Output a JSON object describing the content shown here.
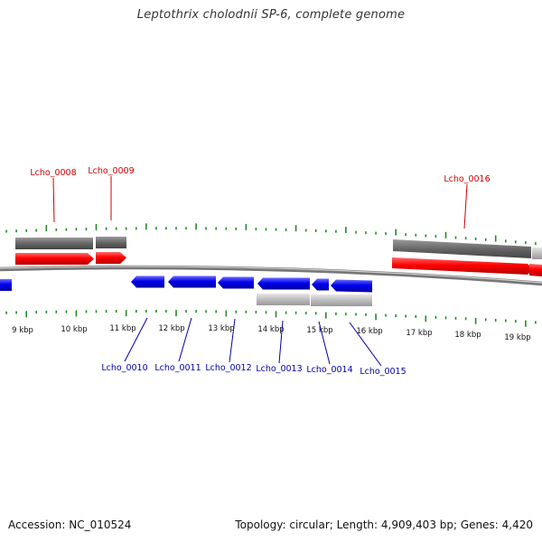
{
  "title": "Leptothrix cholodnii SP-6, complete genome",
  "footer": {
    "accession": "Accession: NC_010524",
    "summary": "Topology: circular; Length: 4,909,403 bp; Genes: 4,420"
  },
  "colors": {
    "forward_gene": "#ff0000",
    "reverse_gene": "#0000ee",
    "forward_feature": "#666666",
    "reverse_feature": "#bbbbbb",
    "backbone": "#888888",
    "ticks": "#228B22",
    "label_forward": "#cc0000",
    "label_reverse": "#0000aa"
  },
  "kbp_labels": [
    "9 kbp",
    "10 kbp",
    "11 kbp",
    "12 kbp",
    "13 kbp",
    "14 kbp",
    "15 kbp",
    "16 kbp",
    "17 kbp",
    "18 kbp",
    "19 kbp"
  ],
  "forward_labels": [
    "Lcho_0008",
    "Lcho_0009",
    "Lcho_0016"
  ],
  "reverse_labels": [
    "Lcho_0010",
    "Lcho_0011",
    "Lcho_0012",
    "Lcho_0013",
    "Lcho_0014",
    "Lcho_0015"
  ]
}
